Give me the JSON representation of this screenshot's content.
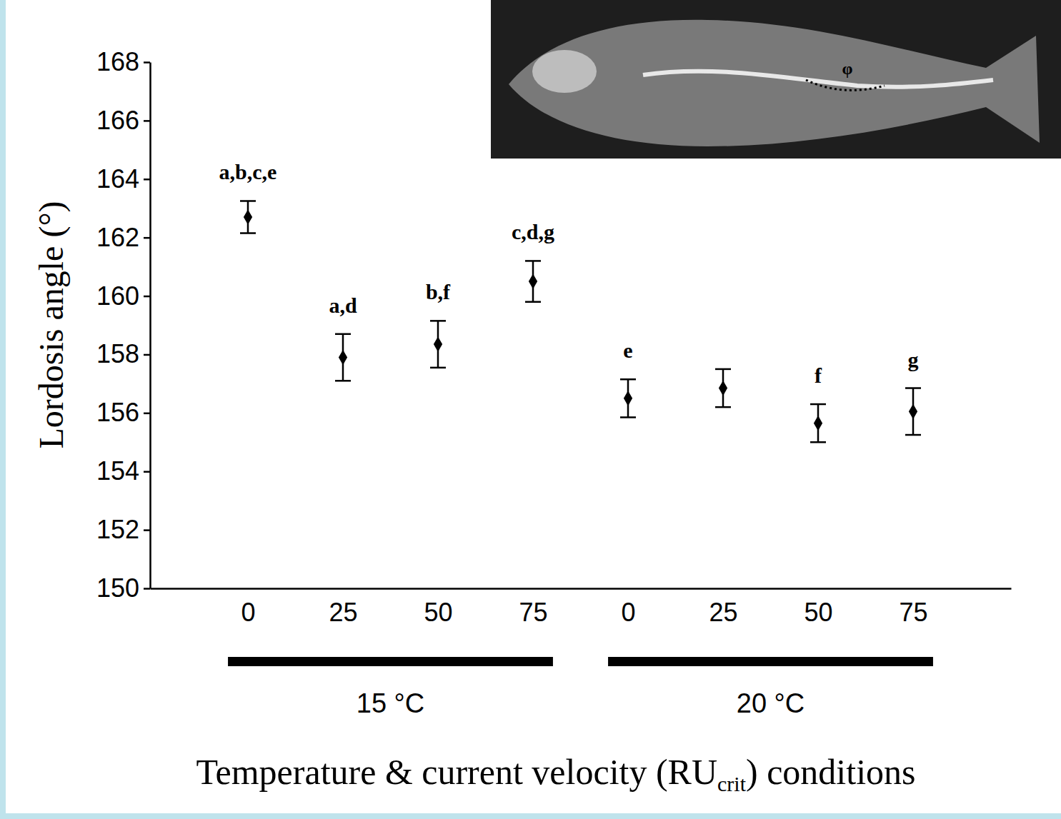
{
  "chart_data": {
    "type": "scatter",
    "xlabel": "Temperature & current velocity (RUcrit) conditions",
    "ylabel": "Lordosis angle (°)",
    "categories": [
      "0",
      "25",
      "50",
      "75",
      "0",
      "25",
      "50",
      "75"
    ],
    "groups": [
      "15 °C",
      "15 °C",
      "15 °C",
      "15 °C",
      "20 °C",
      "20 °C",
      "20 °C",
      "20 °C"
    ],
    "values": [
      162.7,
      157.9,
      158.35,
      160.5,
      156.5,
      156.85,
      155.65,
      156.05
    ],
    "errors": [
      0.55,
      0.8,
      0.8,
      0.7,
      0.65,
      0.65,
      0.65,
      0.8
    ],
    "annotations": [
      "a,b,c,e",
      "a,d",
      "b,f",
      "c,d,g",
      "e",
      null,
      "f",
      "g"
    ],
    "inset_label": "φ",
    "ylim": [
      150,
      168
    ],
    "yticks": [
      150,
      152,
      154,
      156,
      158,
      160,
      162,
      164,
      166,
      168
    ],
    "marker": "diamond",
    "color": "#000000",
    "grid": false
  }
}
